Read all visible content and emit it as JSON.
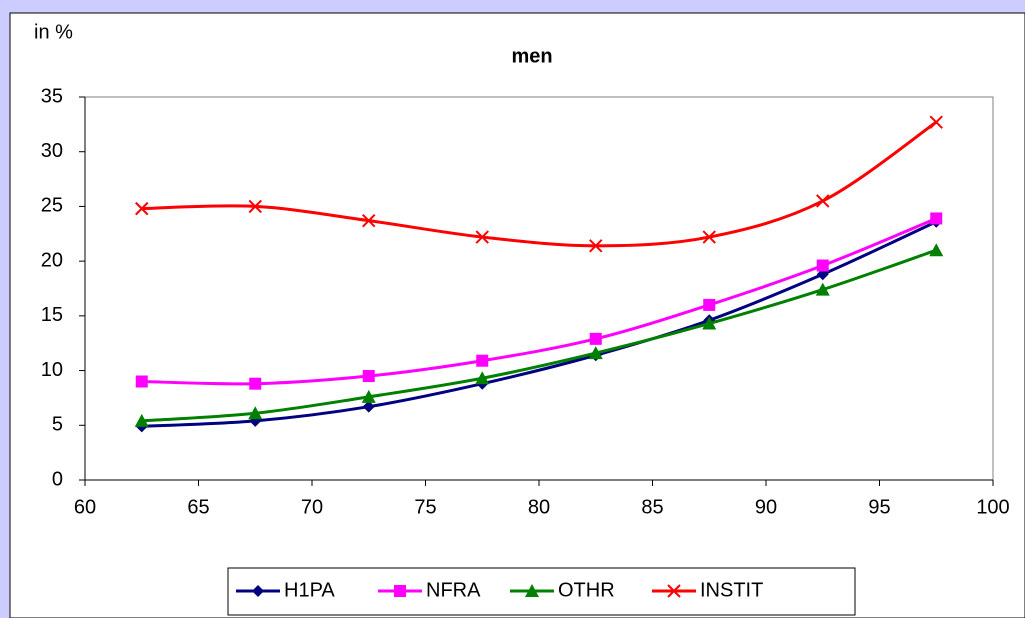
{
  "chart_data": {
    "type": "line",
    "title": "men",
    "y_label": "in %",
    "x": [
      62.5,
      67.5,
      72.5,
      77.5,
      82.5,
      87.5,
      92.5,
      97.5
    ],
    "series": [
      {
        "name": "H1PA",
        "color": "#000080",
        "marker": "diamond",
        "values": [
          4.9,
          5.4,
          6.7,
          8.8,
          11.4,
          14.6,
          18.8,
          23.6
        ]
      },
      {
        "name": "NFRA",
        "color": "#ff00ff",
        "marker": "square",
        "values": [
          9.0,
          8.8,
          9.5,
          10.9,
          12.9,
          16.0,
          19.6,
          23.9
        ]
      },
      {
        "name": "OTHR",
        "color": "#008000",
        "marker": "triangle",
        "values": [
          5.4,
          6.1,
          7.6,
          9.3,
          11.6,
          14.3,
          17.4,
          21.0
        ]
      },
      {
        "name": "INSTIT",
        "color": "#ff0000",
        "marker": "x",
        "values": [
          24.8,
          25.0,
          23.7,
          22.2,
          21.4,
          22.2,
          25.5,
          32.7
        ]
      }
    ],
    "xlim": [
      60,
      100
    ],
    "xticks": [
      60,
      65,
      70,
      75,
      80,
      85,
      90,
      95,
      100
    ],
    "ylim": [
      0,
      35
    ],
    "yticks": [
      0,
      5,
      10,
      15,
      20,
      25,
      30,
      35
    ],
    "legend": "bottom"
  }
}
